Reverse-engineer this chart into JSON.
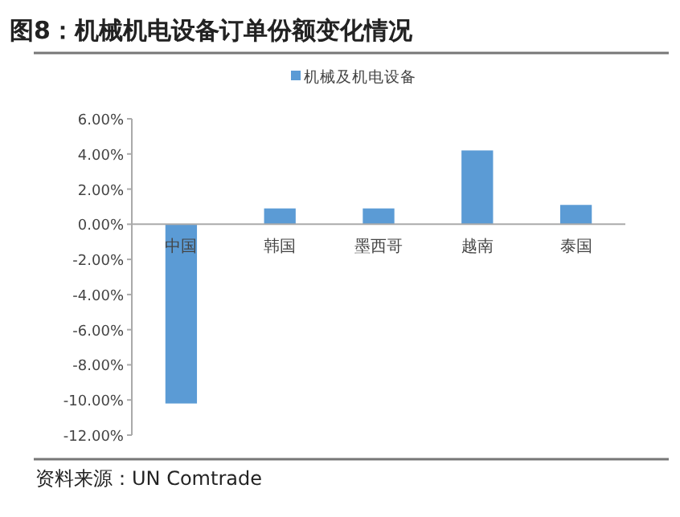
{
  "chart_data": {
    "type": "bar",
    "title": "图8：机械机电设备订单份额变化情况",
    "categories": [
      "中国",
      "韩国",
      "墨西哥",
      "越南",
      "泰国"
    ],
    "series": [
      {
        "name": "机械及机电设备",
        "color": "#5b9bd5",
        "values": [
          -10.2,
          0.9,
          0.9,
          4.2,
          1.1
        ]
      }
    ],
    "ylim": [
      -12,
      6
    ],
    "yticks": [
      {
        "value": -12,
        "label": "-12.00%"
      },
      {
        "value": -10,
        "label": "-10.00%"
      },
      {
        "value": -8,
        "label": "-8.00%"
      },
      {
        "value": -6,
        "label": "-6.00%"
      },
      {
        "value": -4,
        "label": "-4.00%"
      },
      {
        "value": -2,
        "label": "-2.00%"
      },
      {
        "value": 0,
        "label": "0.00%"
      },
      {
        "value": 2,
        "label": "2.00%"
      },
      {
        "value": 4,
        "label": "4.00%"
      },
      {
        "value": 6,
        "label": "6.00%"
      }
    ],
    "legend": "top",
    "grid": false,
    "annotations": [
      "资料来源：UN Comtrade"
    ]
  }
}
